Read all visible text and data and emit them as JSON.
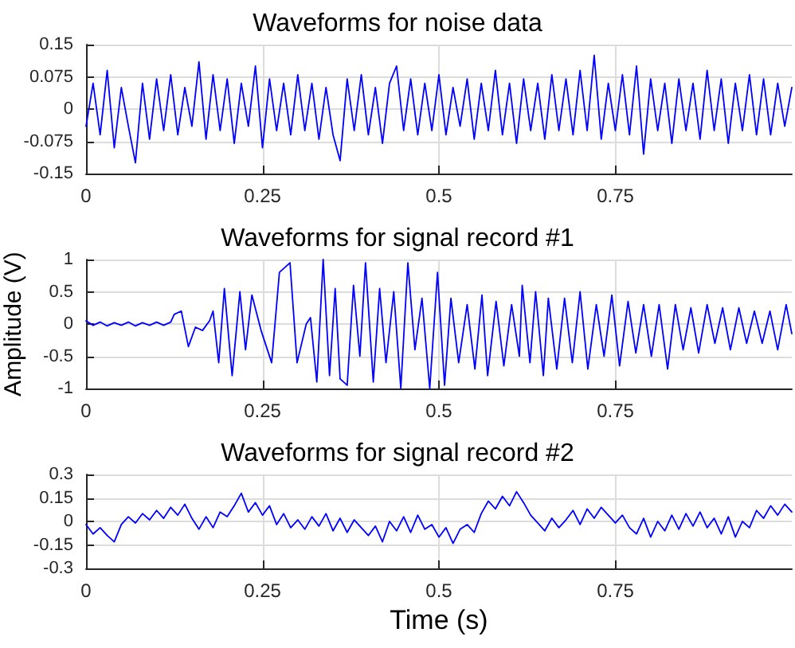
{
  "chart_data": [
    {
      "type": "line",
      "title": "Waveforms for noise data",
      "xlim": [
        0,
        1
      ],
      "xticks": [
        0,
        0.25,
        0.5,
        0.75
      ],
      "ylim": [
        -0.15,
        0.15
      ],
      "yticks": [
        -0.15,
        -0.075,
        0,
        0.075,
        0.15
      ],
      "grid": true,
      "marker": "none",
      "line_style": "solid",
      "x": [
        0,
        0.01,
        0.02,
        0.03,
        0.04,
        0.05,
        0.06,
        0.07,
        0.08,
        0.09,
        0.1,
        0.11,
        0.12,
        0.13,
        0.14,
        0.15,
        0.16,
        0.17,
        0.18,
        0.19,
        0.2,
        0.21,
        0.22,
        0.23,
        0.24,
        0.25,
        0.26,
        0.27,
        0.28,
        0.29,
        0.3,
        0.31,
        0.32,
        0.33,
        0.34,
        0.35,
        0.36,
        0.37,
        0.38,
        0.39,
        0.4,
        0.41,
        0.42,
        0.43,
        0.44,
        0.45,
        0.46,
        0.47,
        0.48,
        0.49,
        0.5,
        0.51,
        0.52,
        0.53,
        0.54,
        0.55,
        0.56,
        0.57,
        0.58,
        0.59,
        0.6,
        0.61,
        0.62,
        0.63,
        0.64,
        0.65,
        0.66,
        0.67,
        0.68,
        0.69,
        0.7,
        0.71,
        0.72,
        0.73,
        0.74,
        0.75,
        0.76,
        0.77,
        0.78,
        0.79,
        0.8,
        0.81,
        0.82,
        0.83,
        0.84,
        0.85,
        0.86,
        0.87,
        0.88,
        0.89,
        0.9,
        0.91,
        0.92,
        0.93,
        0.94,
        0.95,
        0.96,
        0.97,
        0.98,
        0.99,
        1
      ],
      "series": [
        {
          "color": "#0000ff",
          "values": [
            -0.04,
            0.06,
            -0.06,
            0.09,
            -0.09,
            0.05,
            -0.04,
            -0.125,
            0.06,
            -0.07,
            0.07,
            -0.05,
            0.08,
            -0.06,
            0.05,
            -0.04,
            0.11,
            -0.07,
            0.08,
            -0.05,
            0.07,
            -0.08,
            0.06,
            -0.04,
            0.1,
            -0.09,
            0.07,
            -0.05,
            0.06,
            -0.06,
            0.08,
            -0.05,
            0.06,
            -0.07,
            0.05,
            -0.06,
            -0.12,
            0.07,
            -0.05,
            0.08,
            -0.06,
            0.05,
            -0.08,
            0.06,
            0.1,
            -0.05,
            0.07,
            -0.06,
            0.06,
            -0.05,
            0.08,
            -0.06,
            0.05,
            -0.04,
            0.07,
            -0.07,
            0.06,
            -0.05,
            0.09,
            -0.06,
            0.06,
            -0.08,
            0.07,
            -0.05,
            0.06,
            -0.07,
            0.08,
            -0.05,
            0.07,
            -0.06,
            0.09,
            -0.05,
            0.125,
            -0.07,
            0.06,
            -0.05,
            0.08,
            -0.06,
            0.1,
            -0.105,
            0.07,
            -0.05,
            0.06,
            -0.08,
            0.07,
            -0.05,
            0.06,
            -0.07,
            0.09,
            -0.05,
            0.07,
            -0.08,
            0.06,
            -0.05,
            0.08,
            -0.06,
            0.07,
            -0.06,
            0.06,
            -0.04,
            0.05
          ]
        }
      ]
    },
    {
      "type": "line",
      "title": "Waveforms for signal record #1",
      "ylabel": "Amplitude (V)",
      "xlim": [
        0,
        1
      ],
      "xticks": [
        0,
        0.25,
        0.5,
        0.75
      ],
      "ylim": [
        -1,
        1
      ],
      "yticks": [
        -1,
        -0.5,
        0,
        0.5,
        1
      ],
      "grid": true,
      "marker": "none",
      "line_style": "solid",
      "x": [
        0,
        0.01,
        0.02,
        0.03,
        0.04,
        0.05,
        0.06,
        0.07,
        0.08,
        0.09,
        0.1,
        0.11,
        0.12,
        0.125,
        0.135,
        0.145,
        0.155,
        0.165,
        0.175,
        0.18,
        0.188,
        0.196,
        0.207,
        0.218,
        0.226,
        0.235,
        0.248,
        0.263,
        0.274,
        0.289,
        0.299,
        0.312,
        0.318,
        0.327,
        0.336,
        0.345,
        0.353,
        0.36,
        0.37,
        0.379,
        0.388,
        0.396,
        0.407,
        0.416,
        0.425,
        0.436,
        0.446,
        0.456,
        0.466,
        0.476,
        0.487,
        0.498,
        0.508,
        0.517,
        0.528,
        0.54,
        0.551,
        0.561,
        0.569,
        0.581,
        0.592,
        0.603,
        0.614,
        0.618,
        0.629,
        0.637,
        0.648,
        0.655,
        0.667,
        0.678,
        0.689,
        0.7,
        0.711,
        0.723,
        0.734,
        0.745,
        0.756,
        0.768,
        0.779,
        0.79,
        0.801,
        0.812,
        0.824,
        0.835,
        0.846,
        0.857,
        0.868,
        0.88,
        0.891,
        0.902,
        0.913,
        0.925,
        0.936,
        0.947,
        0.958,
        0.969,
        0.98,
        0.992,
        1
      ],
      "series": [
        {
          "color": "#0000ff",
          "values": [
            0.05,
            -0.02,
            0.03,
            -0.03,
            0.02,
            -0.02,
            0.03,
            -0.03,
            0.02,
            -0.02,
            0.03,
            -0.02,
            0.03,
            0.15,
            0.2,
            -0.35,
            -0.05,
            -0.1,
            0.05,
            0.2,
            -0.6,
            0.55,
            -0.8,
            0.5,
            -0.4,
            0.45,
            -0.1,
            -0.6,
            0.8,
            0.95,
            -0.6,
            0,
            0.1,
            -0.9,
            1,
            -0.8,
            0.55,
            -0.85,
            -0.95,
            0.6,
            -0.5,
            0.95,
            -0.9,
            0.55,
            -0.6,
            0.5,
            -1,
            0.95,
            -0.4,
            0.4,
            -1,
            0.8,
            -0.95,
            0.4,
            -0.6,
            0.3,
            -0.7,
            0.45,
            -0.8,
            0.35,
            -0.65,
            0.3,
            -0.5,
            0.6,
            -0.6,
            0.5,
            -0.8,
            0.4,
            -0.7,
            0.4,
            -0.6,
            0.5,
            -0.7,
            0.3,
            -0.5,
            0.45,
            -0.65,
            0.35,
            -0.45,
            0.3,
            -0.5,
            0.3,
            -0.7,
            0.3,
            -0.4,
            0.25,
            -0.45,
            0.3,
            -0.3,
            0.25,
            -0.4,
            0.25,
            -0.3,
            0.2,
            -0.3,
            0.2,
            -0.4,
            0.3,
            -0.15
          ]
        }
      ]
    },
    {
      "type": "line",
      "title": "Waveforms for signal record #2",
      "xlabel": "Time (s)",
      "xlim": [
        0,
        1
      ],
      "xticks": [
        0,
        0.25,
        0.5,
        0.75
      ],
      "ylim": [
        -0.3,
        0.3
      ],
      "yticks": [
        -0.3,
        -0.15,
        0,
        0.15,
        0.3
      ],
      "grid": true,
      "marker": "none",
      "line_style": "solid",
      "x": [
        0,
        0.01,
        0.02,
        0.03,
        0.04,
        0.05,
        0.06,
        0.07,
        0.08,
        0.09,
        0.1,
        0.11,
        0.12,
        0.13,
        0.14,
        0.15,
        0.16,
        0.17,
        0.18,
        0.19,
        0.2,
        0.21,
        0.22,
        0.23,
        0.24,
        0.25,
        0.26,
        0.27,
        0.28,
        0.29,
        0.3,
        0.31,
        0.32,
        0.33,
        0.34,
        0.35,
        0.36,
        0.37,
        0.38,
        0.39,
        0.4,
        0.41,
        0.42,
        0.43,
        0.44,
        0.45,
        0.46,
        0.47,
        0.48,
        0.49,
        0.5,
        0.51,
        0.52,
        0.53,
        0.54,
        0.55,
        0.56,
        0.57,
        0.58,
        0.59,
        0.6,
        0.61,
        0.62,
        0.63,
        0.64,
        0.65,
        0.66,
        0.67,
        0.68,
        0.69,
        0.7,
        0.71,
        0.72,
        0.73,
        0.74,
        0.75,
        0.76,
        0.77,
        0.78,
        0.79,
        0.8,
        0.81,
        0.82,
        0.83,
        0.84,
        0.85,
        0.86,
        0.87,
        0.88,
        0.89,
        0.9,
        0.91,
        0.92,
        0.93,
        0.94,
        0.95,
        0.96,
        0.97,
        0.98,
        0.99,
        1
      ],
      "series": [
        {
          "color": "#0000ff",
          "values": [
            -0.02,
            -0.08,
            -0.04,
            -0.09,
            -0.13,
            -0.02,
            0.03,
            -0.01,
            0.05,
            0.01,
            0.07,
            0.02,
            0.09,
            0.04,
            0.11,
            0.02,
            -0.05,
            0.03,
            -0.04,
            0.06,
            0.03,
            0.1,
            0.18,
            0.06,
            0.12,
            0.04,
            0.1,
            -0.02,
            0.05,
            -0.04,
            0.01,
            -0.05,
            0.03,
            -0.03,
            0.05,
            -0.06,
            0.02,
            -0.07,
            0.01,
            -0.04,
            -0.09,
            -0.03,
            -0.13,
            0,
            -0.06,
            0.03,
            -0.07,
            0.04,
            -0.05,
            -0.02,
            -0.1,
            -0.04,
            -0.14,
            -0.05,
            -0.02,
            -0.07,
            0.05,
            0.13,
            0.08,
            0.16,
            0.1,
            0.19,
            0.12,
            0.04,
            -0.01,
            -0.06,
            0.02,
            -0.04,
            0.01,
            0.07,
            -0.02,
            0.08,
            0.02,
            0.09,
            0.04,
            -0.01,
            0.04,
            -0.04,
            -0.08,
            0.02,
            -0.1,
            0,
            -0.06,
            0.04,
            -0.05,
            0.05,
            -0.03,
            0.06,
            -0.04,
            0.02,
            -0.08,
            0.03,
            -0.1,
            0,
            -0.04,
            0.07,
            0.02,
            0.1,
            0.04,
            0.11,
            0.06
          ]
        }
      ]
    }
  ]
}
